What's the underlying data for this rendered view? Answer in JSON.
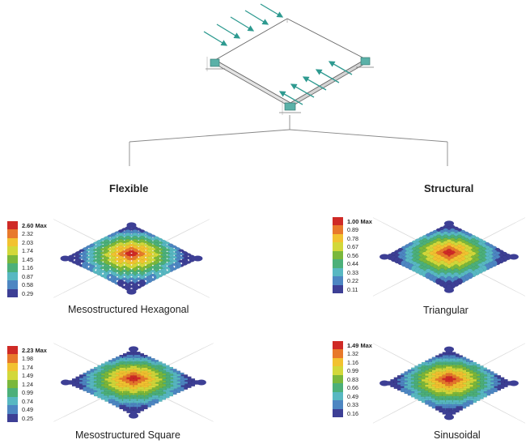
{
  "headings": {
    "left": "Flexible",
    "right": "Structural"
  },
  "legend_colors": [
    "#cf2a26",
    "#e8792b",
    "#f2c230",
    "#d2d83a",
    "#7ab83c",
    "#4cb07a",
    "#58b8c2",
    "#4d86c2",
    "#3d3f95"
  ],
  "panels": [
    {
      "id": "hexagonal",
      "caption": "Mesostructured Hexagonal",
      "max_label": "2.60 Max",
      "values": [
        "2.32",
        "2.03",
        "1.74",
        "1.45",
        "1.16",
        "0.87",
        "0.58",
        "0.29"
      ]
    },
    {
      "id": "triangular",
      "caption": "Triangular",
      "max_label": "1.00 Max",
      "values": [
        "0.89",
        "0.78",
        "0.67",
        "0.56",
        "0.44",
        "0.33",
        "0.22",
        "0.11"
      ]
    },
    {
      "id": "square",
      "caption": "Mesostructured Square",
      "max_label": "2.23 Max",
      "values": [
        "1.98",
        "1.74",
        "1.49",
        "1.24",
        "0.99",
        "0.74",
        "0.49",
        "0.25"
      ]
    },
    {
      "id": "sinusoidal",
      "caption": "Sinusoidal",
      "max_label": "1.49 Max",
      "values": [
        "1.32",
        "1.16",
        "0.99",
        "0.83",
        "0.66",
        "0.49",
        "0.33",
        "0.16"
      ]
    }
  ]
}
